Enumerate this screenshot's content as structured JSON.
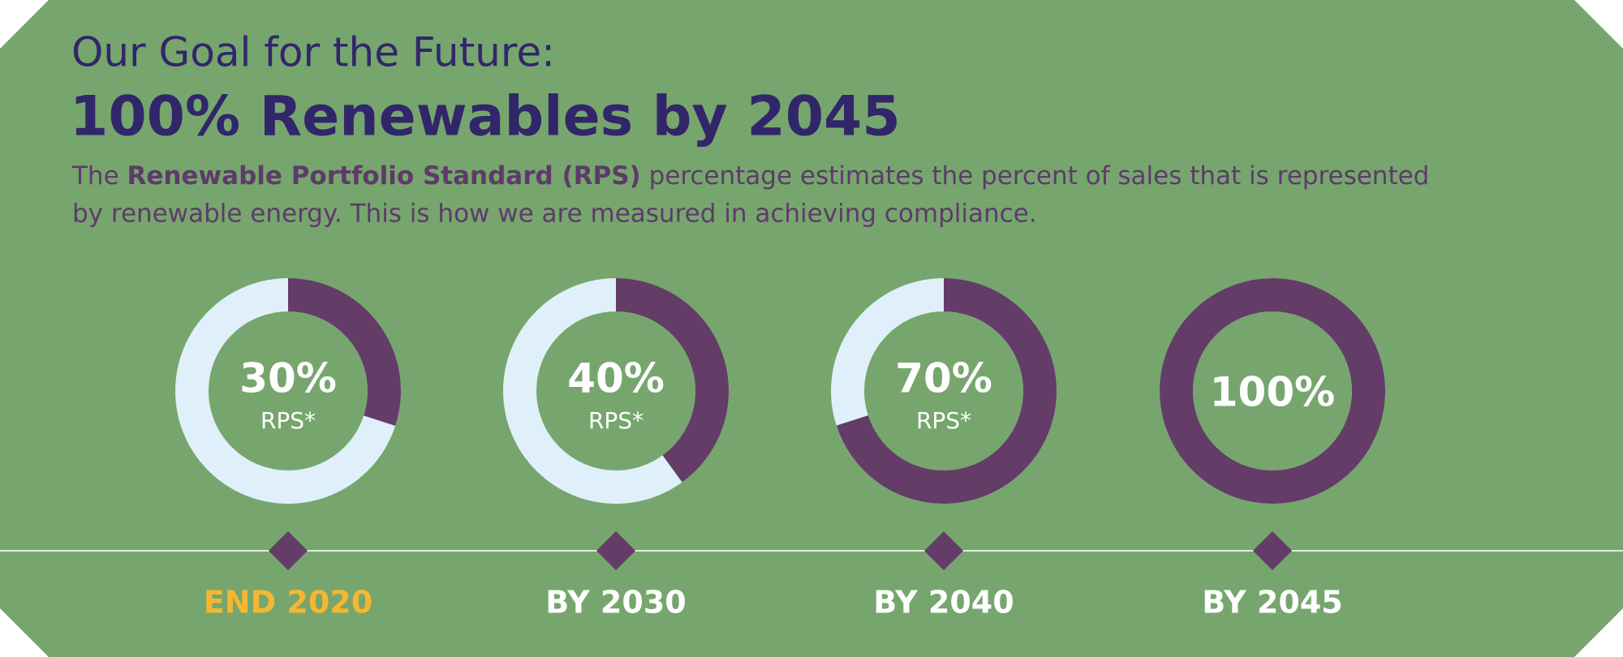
{
  "header": {
    "kicker": "Our Goal for the Future:",
    "title": "100% Renewables by 2045",
    "description_line1": [
      "The ",
      "Renewable Portfolio Standard (RPS)",
      " percentage estimates the percent of sales that is represented"
    ],
    "description_line2": "by renewable energy. This is how we are measured in achieving compliance."
  },
  "chart_data": {
    "type": "donut",
    "categories": [
      "END 2020",
      "BY 2030",
      "BY 2040",
      "BY 2045"
    ],
    "category_colors": [
      "#f5b731",
      "#ffffff",
      "#ffffff",
      "#ffffff"
    ],
    "values": [
      30,
      40,
      70,
      100
    ],
    "value_labels": [
      "30%",
      "40%",
      "70%",
      "100%"
    ],
    "sublabels": [
      "RPS*",
      "RPS*",
      "RPS*",
      null
    ],
    "ylim": [
      0,
      100
    ],
    "color": "#633c68",
    "track_color": "#dff0fa"
  }
}
